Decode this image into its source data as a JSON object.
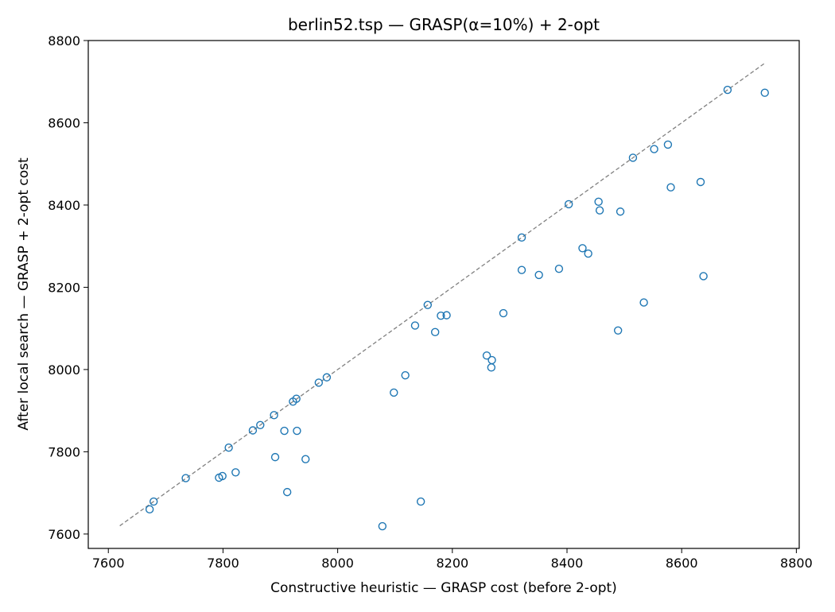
{
  "chart_data": {
    "type": "scatter",
    "title": "berlin52.tsp — GRASP(α=10%) + 2-opt",
    "xlabel": "Constructive heuristic — GRASP cost (before 2-opt)",
    "ylabel": "After local search — GRASP + 2-opt cost",
    "xlim": [
      7565,
      8805
    ],
    "ylim": [
      7565,
      8800
    ],
    "xticks": [
      7600,
      7800,
      8000,
      8200,
      8400,
      8600,
      8800
    ],
    "yticks": [
      7600,
      7800,
      8000,
      8200,
      8400,
      8600,
      8800
    ],
    "grid": false,
    "marker_color": "#1f77b4",
    "reference_line": {
      "style": "dashed",
      "color": "#808080",
      "x": [
        7620,
        8745
      ],
      "y": [
        7620,
        8745
      ]
    },
    "points": [
      {
        "x": 7672,
        "y": 7660
      },
      {
        "x": 7679,
        "y": 7679
      },
      {
        "x": 7735,
        "y": 7736
      },
      {
        "x": 7793,
        "y": 7737
      },
      {
        "x": 7799,
        "y": 7741
      },
      {
        "x": 7810,
        "y": 7810
      },
      {
        "x": 7822,
        "y": 7750
      },
      {
        "x": 7852,
        "y": 7852
      },
      {
        "x": 7865,
        "y": 7865
      },
      {
        "x": 7889,
        "y": 7889
      },
      {
        "x": 7891,
        "y": 7787
      },
      {
        "x": 7907,
        "y": 7851
      },
      {
        "x": 7912,
        "y": 7702
      },
      {
        "x": 7922,
        "y": 7922
      },
      {
        "x": 7928,
        "y": 7929
      },
      {
        "x": 7929,
        "y": 7851
      },
      {
        "x": 7944,
        "y": 7782
      },
      {
        "x": 7967,
        "y": 7968
      },
      {
        "x": 7981,
        "y": 7981
      },
      {
        "x": 8078,
        "y": 7619
      },
      {
        "x": 8098,
        "y": 7944
      },
      {
        "x": 8118,
        "y": 7986
      },
      {
        "x": 8135,
        "y": 8107
      },
      {
        "x": 8145,
        "y": 7679
      },
      {
        "x": 8157,
        "y": 8157
      },
      {
        "x": 8170,
        "y": 8091
      },
      {
        "x": 8180,
        "y": 8131
      },
      {
        "x": 8190,
        "y": 8132
      },
      {
        "x": 8260,
        "y": 8034
      },
      {
        "x": 8268,
        "y": 8005
      },
      {
        "x": 8269,
        "y": 8023
      },
      {
        "x": 8289,
        "y": 8137
      },
      {
        "x": 8321,
        "y": 8242
      },
      {
        "x": 8321,
        "y": 8321
      },
      {
        "x": 8351,
        "y": 8230
      },
      {
        "x": 8386,
        "y": 8245
      },
      {
        "x": 8403,
        "y": 8402
      },
      {
        "x": 8427,
        "y": 8295
      },
      {
        "x": 8437,
        "y": 8282
      },
      {
        "x": 8455,
        "y": 8408
      },
      {
        "x": 8457,
        "y": 8387
      },
      {
        "x": 8489,
        "y": 8095
      },
      {
        "x": 8493,
        "y": 8384
      },
      {
        "x": 8515,
        "y": 8515
      },
      {
        "x": 8534,
        "y": 8163
      },
      {
        "x": 8552,
        "y": 8536
      },
      {
        "x": 8576,
        "y": 8547
      },
      {
        "x": 8581,
        "y": 8443
      },
      {
        "x": 8633,
        "y": 8456
      },
      {
        "x": 8638,
        "y": 8227
      },
      {
        "x": 8680,
        "y": 8680
      },
      {
        "x": 8745,
        "y": 8673
      }
    ]
  }
}
